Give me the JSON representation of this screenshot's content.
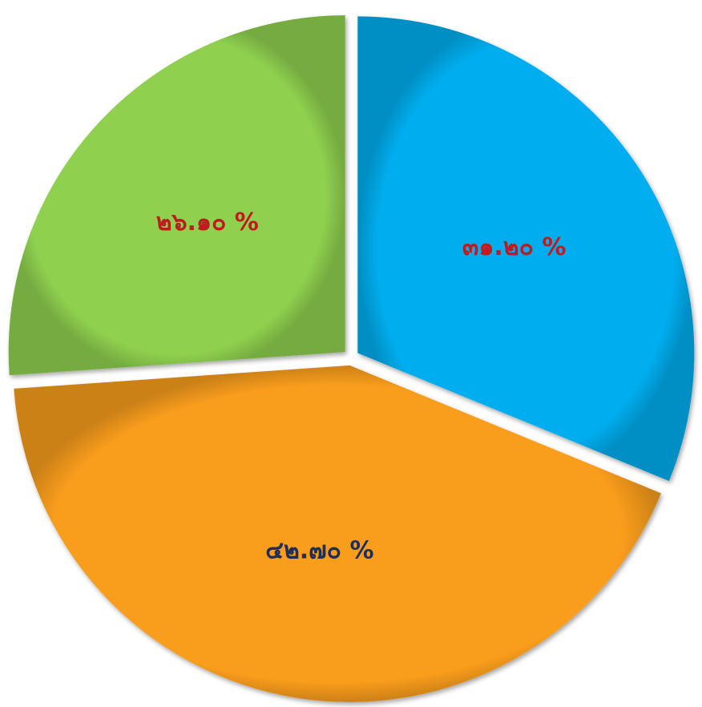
{
  "chart_data": {
    "type": "pie",
    "slices": [
      {
        "label": "๓๑.๒๐ %",
        "value": 31.2,
        "color": "#00AEEF",
        "label_color": "#C0191E"
      },
      {
        "label": "๔๒.๗๐ %",
        "value": 42.7,
        "color": "#F99D1C",
        "label_color": "#1F2D5A"
      },
      {
        "label": "๒๖.๑๐ %",
        "value": 26.1,
        "color": "#8FD14F",
        "label_color": "#C0191E"
      }
    ],
    "start_angle_deg": 0,
    "direction": "clockwise",
    "exploded": true,
    "legend": "none"
  }
}
